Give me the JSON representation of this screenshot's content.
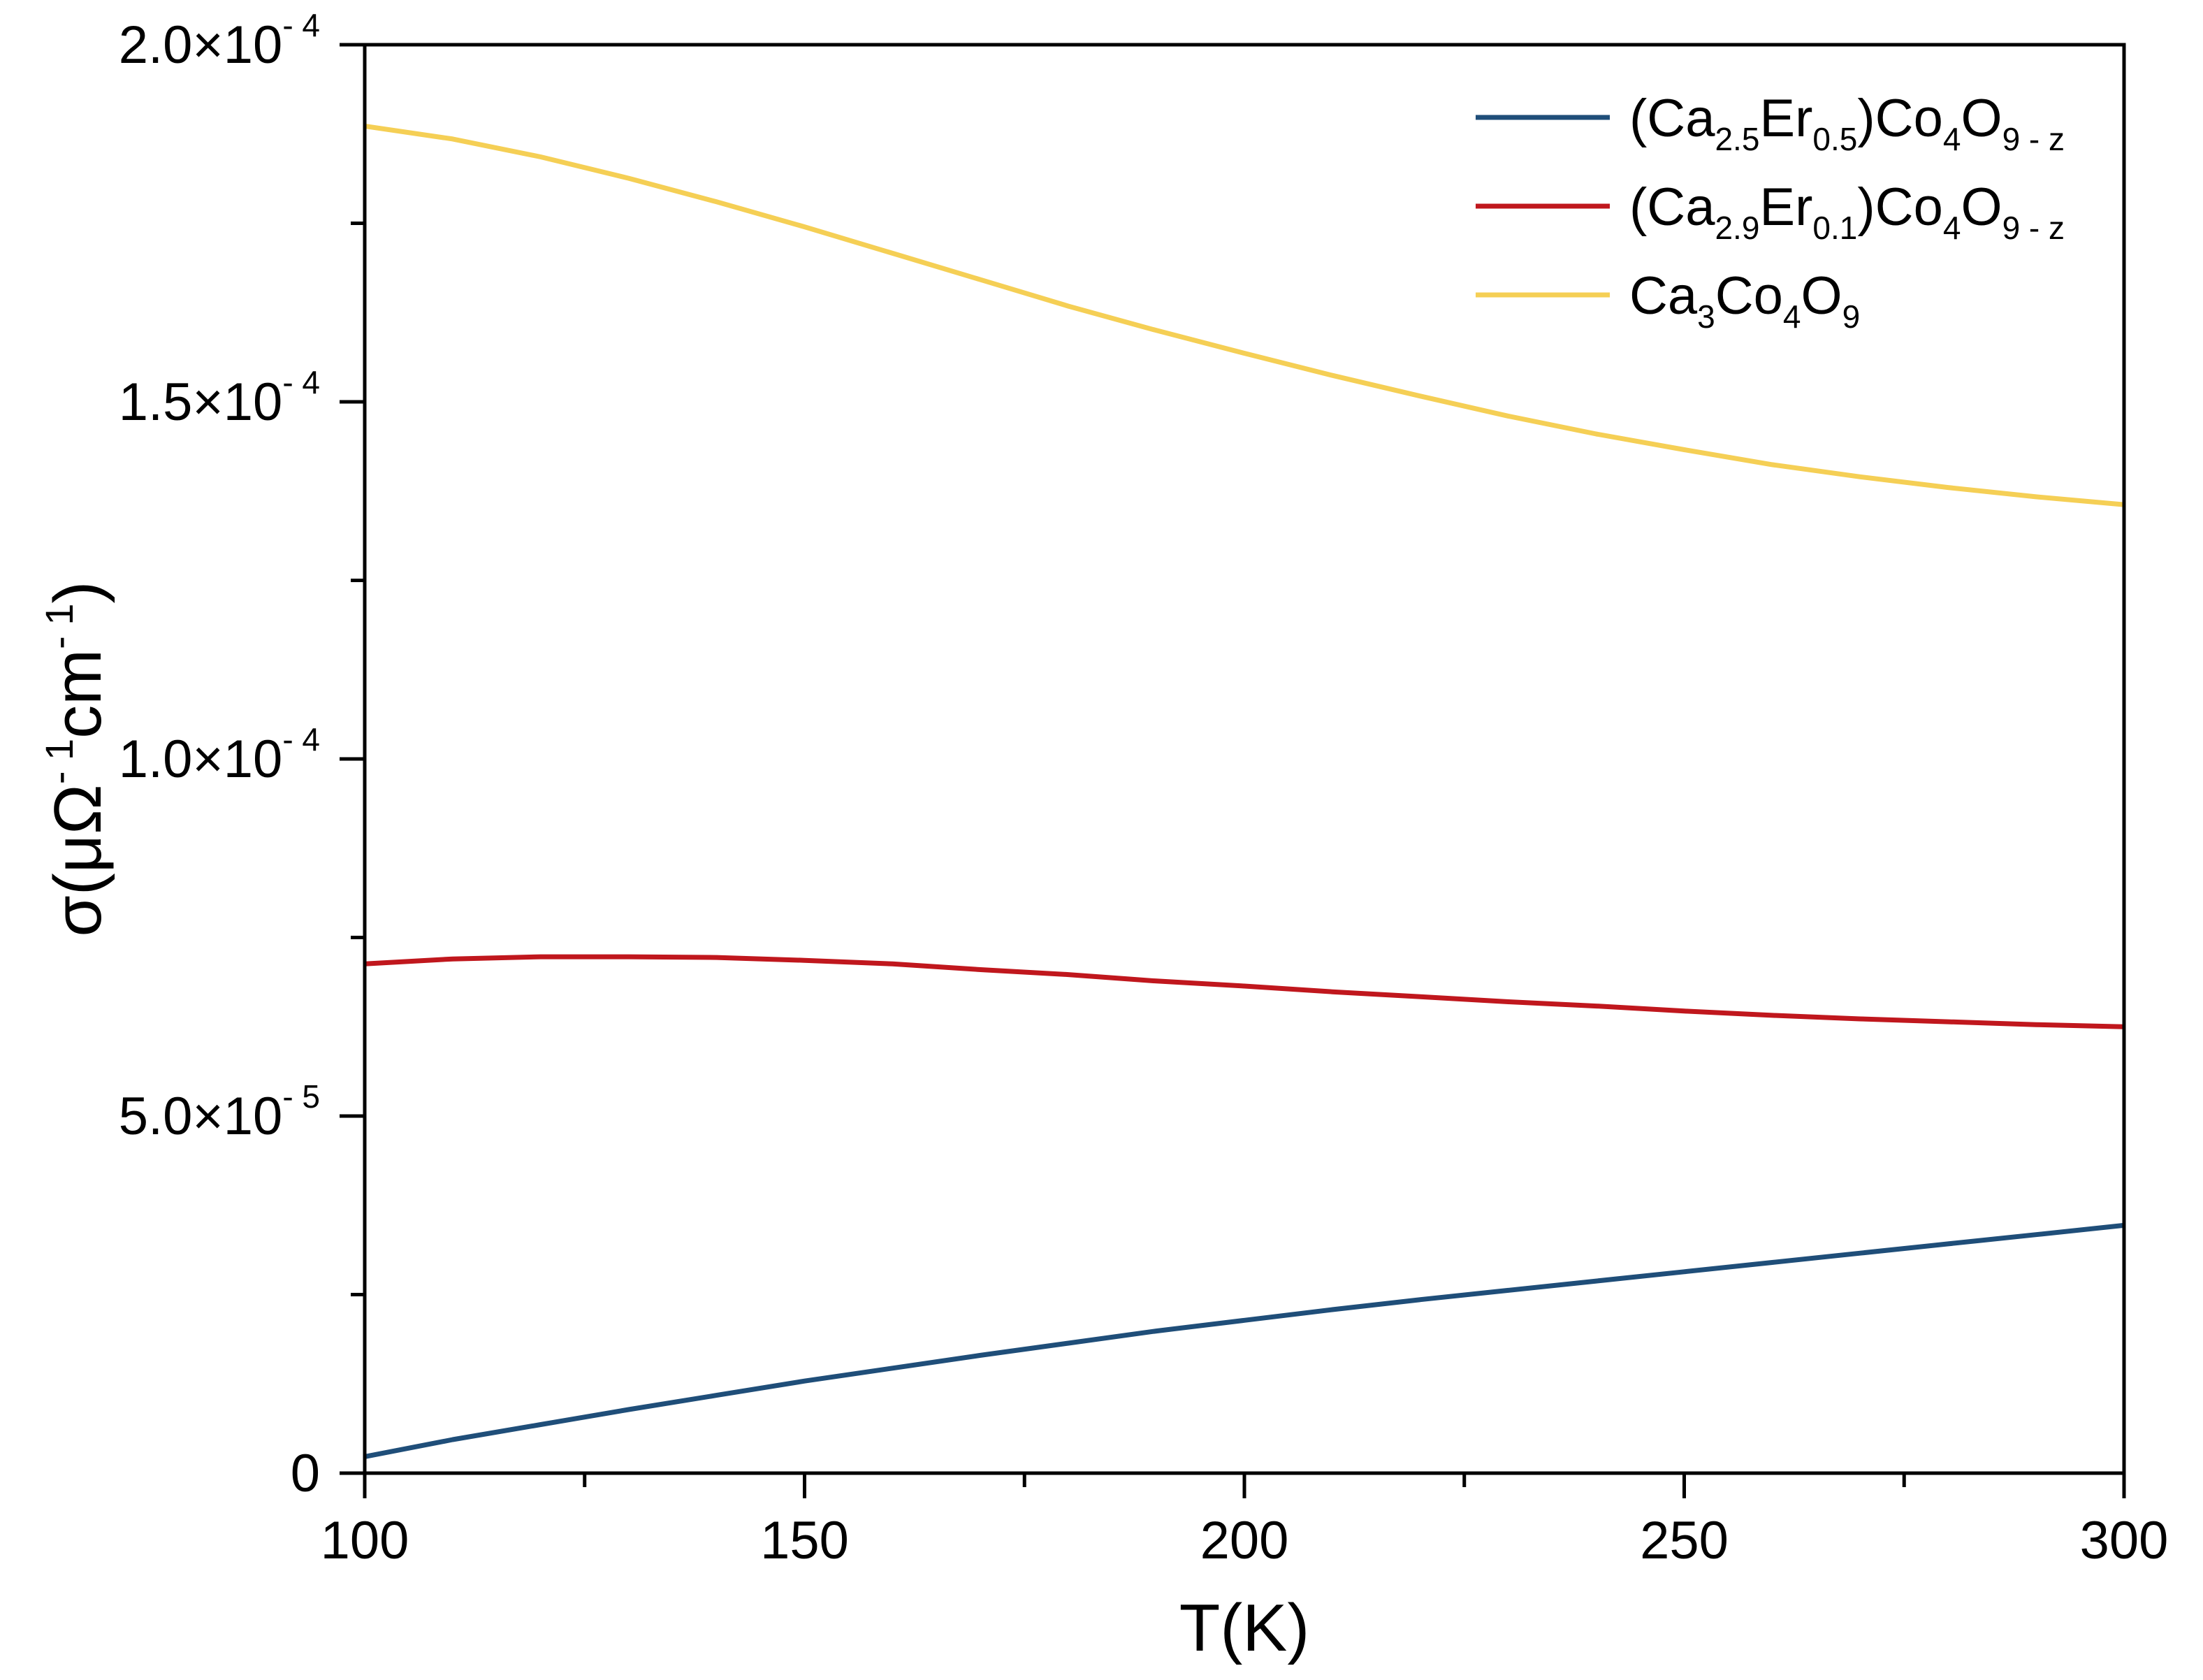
{
  "chart_data": {
    "type": "line",
    "title": "",
    "xlabel": "T(K)",
    "ylabel": {
      "base": "σ(μΩ",
      "sup1": "- 1",
      "mid": "cm",
      "sup2": "- 1",
      "end": ")"
    },
    "xlim": [
      100,
      300
    ],
    "ylim": [
      0,
      0.0002
    ],
    "grid": false,
    "legend_position": "top-right",
    "x_ticks": [
      {
        "value": 100,
        "label": "100"
      },
      {
        "value": 150,
        "label": "150"
      },
      {
        "value": 200,
        "label": "200"
      },
      {
        "value": 250,
        "label": "250"
      },
      {
        "value": 300,
        "label": "300"
      }
    ],
    "x_minor_ticks": [
      125,
      175,
      225,
      275
    ],
    "y_ticks": [
      {
        "value": 0,
        "mantissa": "0",
        "exponent": ""
      },
      {
        "value": 5e-05,
        "mantissa": "5.0×10",
        "exponent": "- 5"
      },
      {
        "value": 0.0001,
        "mantissa": "1.0×10",
        "exponent": "- 4"
      },
      {
        "value": 0.00015,
        "mantissa": "1.5×10",
        "exponent": "- 4"
      },
      {
        "value": 0.0002,
        "mantissa": "2.0×10",
        "exponent": "- 4"
      }
    ],
    "y_minor_ticks": [
      2.5e-05,
      7.5e-05,
      0.000125,
      0.000175
    ],
    "x": [
      100,
      110,
      120,
      130,
      140,
      150,
      160,
      170,
      180,
      190,
      200,
      210,
      220,
      230,
      240,
      250,
      260,
      270,
      280,
      290,
      300
    ],
    "series": [
      {
        "name": "(Ca2.5Er0.5)Co4O9 - z",
        "legend_parts": [
          {
            "t": "(Ca"
          },
          {
            "t": "2.5",
            "sub": true
          },
          {
            "t": "Er"
          },
          {
            "t": "0.5",
            "sub": true
          },
          {
            "t": ")Co"
          },
          {
            "t": "4",
            "sub": true
          },
          {
            "t": "O"
          },
          {
            "t": "9 - z",
            "sub": true
          }
        ],
        "color": "#1f4e79",
        "values": [
          2.3e-06,
          4.7e-06,
          6.8e-06,
          8.9e-06,
          1.09e-05,
          1.29e-05,
          1.47e-05,
          1.65e-05,
          1.82e-05,
          1.99e-05,
          2.14e-05,
          2.29e-05,
          2.43e-05,
          2.56e-05,
          2.69e-05,
          2.82e-05,
          2.95e-05,
          3.08e-05,
          3.21e-05,
          3.34e-05,
          3.47e-05
        ]
      },
      {
        "name": "(Ca2.9Er0.1)Co4O9 - z",
        "legend_parts": [
          {
            "t": "(Ca"
          },
          {
            "t": "2.9",
            "sub": true
          },
          {
            "t": "Er"
          },
          {
            "t": "0.1",
            "sub": true
          },
          {
            "t": ")Co"
          },
          {
            "t": "4",
            "sub": true
          },
          {
            "t": "O"
          },
          {
            "t": "9 - z",
            "sub": true
          }
        ],
        "color": "#c0171d",
        "values": [
          7.13e-05,
          7.2e-05,
          7.23e-05,
          7.23e-05,
          7.22e-05,
          7.18e-05,
          7.13e-05,
          7.05e-05,
          6.98e-05,
          6.89e-05,
          6.82e-05,
          6.74e-05,
          6.67e-05,
          6.6e-05,
          6.54e-05,
          6.47e-05,
          6.41e-05,
          6.36e-05,
          6.32e-05,
          6.28e-05,
          6.25e-05
        ]
      },
      {
        "name": "Ca3Co4O9",
        "legend_parts": [
          {
            "t": "Ca"
          },
          {
            "t": "3",
            "sub": true
          },
          {
            "t": "Co"
          },
          {
            "t": "4",
            "sub": true
          },
          {
            "t": "O"
          },
          {
            "t": "9",
            "sub": true
          }
        ],
        "color": "#f5cf55",
        "values": [
          0.0001886,
          0.0001868,
          0.0001843,
          0.0001813,
          0.000178,
          0.0001745,
          0.0001708,
          0.0001671,
          0.0001634,
          0.00016,
          0.0001568,
          0.0001537,
          0.0001508,
          0.000148,
          0.0001455,
          0.0001433,
          0.0001412,
          0.0001395,
          0.000138,
          0.0001367,
          0.0001356
        ]
      }
    ]
  }
}
